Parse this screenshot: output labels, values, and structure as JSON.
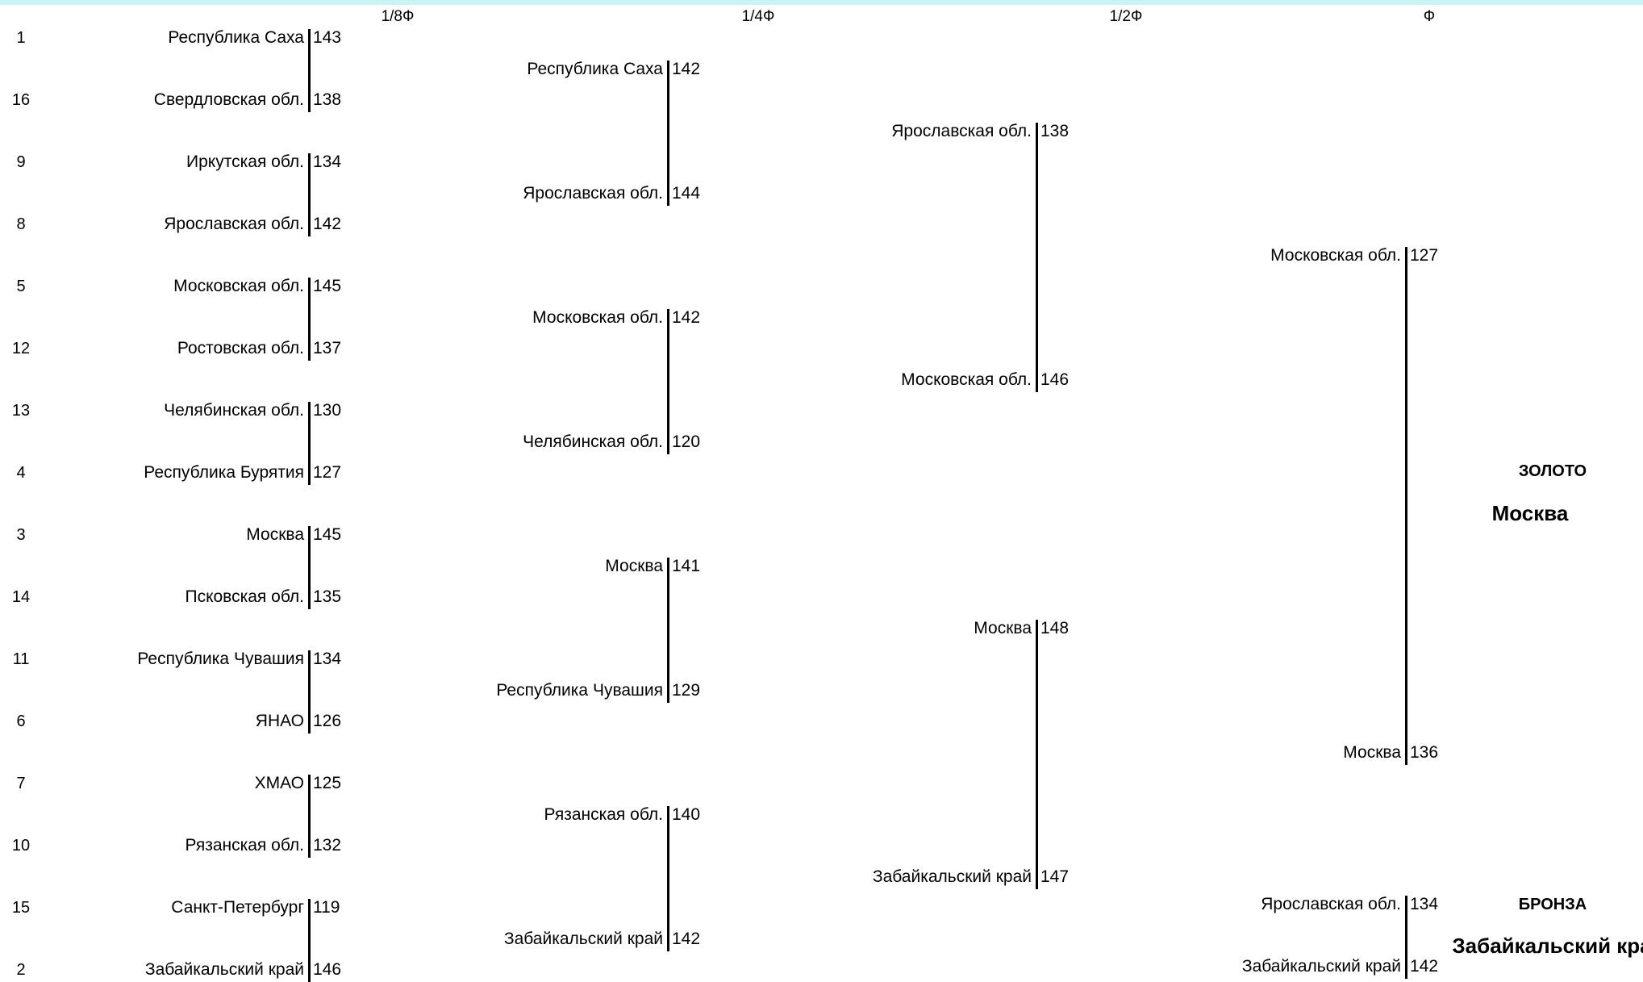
{
  "headers": [
    "1/8Ф",
    "1/4Ф",
    "1/2Ф",
    "Ф"
  ],
  "seeds": [
    1,
    16,
    9,
    8,
    5,
    12,
    13,
    4,
    3,
    14,
    11,
    6,
    7,
    10,
    15,
    2
  ],
  "rounds": [
    {
      "matches": [
        [
          {
            "team": "Республика Саха",
            "score": "143"
          },
          {
            "team": "Свердловская обл.",
            "score": "138"
          }
        ],
        [
          {
            "team": "Иркутская обл.",
            "score": "134"
          },
          {
            "team": "Ярославская обл.",
            "score": "142"
          }
        ],
        [
          {
            "team": "Московская обл.",
            "score": "145"
          },
          {
            "team": "Ростовская обл.",
            "score": "137"
          }
        ],
        [
          {
            "team": "Челябинская обл.",
            "score": "130"
          },
          {
            "team": "Республика Бурятия",
            "score": "127"
          }
        ],
        [
          {
            "team": "Москва",
            "score": "145"
          },
          {
            "team": "Псковская обл.",
            "score": "135"
          }
        ],
        [
          {
            "team": "Республика Чувашия",
            "score": "134"
          },
          {
            "team": "ЯНАО",
            "score": "126"
          }
        ],
        [
          {
            "team": "ХМАО",
            "score": "125"
          },
          {
            "team": "Рязанская обл.",
            "score": "132"
          }
        ],
        [
          {
            "team": "Санкт-Петербург",
            "score": "119"
          },
          {
            "team": "Забайкальский край",
            "score": "146"
          }
        ]
      ]
    },
    {
      "matches": [
        [
          {
            "team": "Республика Саха",
            "score": "142"
          },
          {
            "team": "Ярославская обл.",
            "score": "144"
          }
        ],
        [
          {
            "team": "Московская обл.",
            "score": "142"
          },
          {
            "team": "Челябинская обл.",
            "score": "120"
          }
        ],
        [
          {
            "team": "Москва",
            "score": "141"
          },
          {
            "team": "Республика Чувашия",
            "score": "129"
          }
        ],
        [
          {
            "team": "Рязанская обл.",
            "score": "140"
          },
          {
            "team": "Забайкальский край",
            "score": "142"
          }
        ]
      ]
    },
    {
      "matches": [
        [
          {
            "team": "Ярославская обл.",
            "score": "138"
          },
          {
            "team": "Московская обл.",
            "score": "146"
          }
        ],
        [
          {
            "team": "Москва",
            "score": "148"
          },
          {
            "team": "Забайкальский край",
            "score": "147"
          }
        ]
      ]
    },
    {
      "matches": [
        [
          {
            "team": "Московская обл.",
            "score": "127"
          },
          {
            "team": "Москва",
            "score": "136"
          }
        ],
        [
          {
            "team": "Ярославская обл.",
            "score": "134"
          },
          {
            "team": "Забайкальский край",
            "score": "142"
          }
        ]
      ]
    }
  ],
  "gold": {
    "label": "ЗОЛОТО",
    "winner": "Москва"
  },
  "bronze": {
    "label": "БРОНЗА",
    "winner": "Забайкальский край"
  }
}
